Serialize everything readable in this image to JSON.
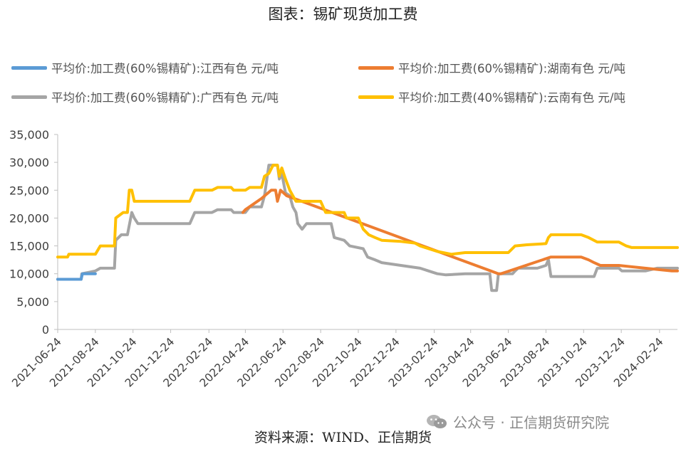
{
  "chart_data": {
    "type": "line",
    "title": "图表：锡矿现货加工费",
    "xlabel": "",
    "ylabel": "",
    "ylim": [
      0,
      35000
    ],
    "yticks": [
      0,
      5000,
      10000,
      15000,
      20000,
      25000,
      30000,
      35000
    ],
    "ytick_labels": [
      "0",
      "5,000",
      "10,000",
      "15,000",
      "20,000",
      "25,000",
      "30,000",
      "35,000"
    ],
    "xlim": [
      "2021-06-24",
      "2024-03-24"
    ],
    "xtick_labels": [
      "2021-06-24",
      "2021-08-24",
      "2021-10-24",
      "2021-12-24",
      "2022-02-24",
      "2022-04-24",
      "2022-06-24",
      "2022-08-24",
      "2022-10-24",
      "2022-12-24",
      "2023-02-24",
      "2023-04-24",
      "2023-06-24",
      "2023-08-24",
      "2023-10-24",
      "2023-12-24",
      "2024-02-24"
    ],
    "grid": false,
    "legend_position": "top",
    "series": [
      {
        "name": "平均价:加工费(60%锡精矿):江西有色 元/吨",
        "color": "#5b9bd5",
        "points": [
          [
            "2021-06-24",
            9000
          ],
          [
            "2021-08-01",
            9000
          ],
          [
            "2021-08-03",
            10000
          ],
          [
            "2021-08-24",
            10000
          ]
        ]
      },
      {
        "name": "平均价:加工费(60%锡精矿):湖南有色 元/吨",
        "color": "#ed7d31",
        "points": [
          [
            "2022-04-20",
            21000
          ],
          [
            "2022-04-24",
            21500
          ],
          [
            "2022-05-20",
            23500
          ],
          [
            "2022-06-05",
            25000
          ],
          [
            "2022-06-12",
            25000
          ],
          [
            "2022-06-15",
            23000
          ],
          [
            "2022-06-20",
            25000
          ],
          [
            "2022-06-30",
            24000
          ],
          [
            "2023-06-08",
            10000
          ],
          [
            "2023-06-12",
            10000
          ],
          [
            "2023-09-01",
            13000
          ],
          [
            "2023-10-20",
            13000
          ],
          [
            "2023-11-01",
            12500
          ],
          [
            "2023-11-10",
            12000
          ],
          [
            "2023-11-20",
            11500
          ],
          [
            "2023-12-20",
            11500
          ],
          [
            "2024-03-15",
            10500
          ],
          [
            "2024-03-24",
            10500
          ]
        ]
      },
      {
        "name": "平均价:加工费(60%锡精矿):广西有色 元/吨",
        "color": "#a5a5a5",
        "points": [
          [
            "2021-06-24",
            9000
          ],
          [
            "2021-08-01",
            9000
          ],
          [
            "2021-08-02",
            10000
          ],
          [
            "2021-08-24",
            10500
          ],
          [
            "2021-09-01",
            11000
          ],
          [
            "2021-09-24",
            11000
          ],
          [
            "2021-09-26",
            16000
          ],
          [
            "2021-10-05",
            17000
          ],
          [
            "2021-10-15",
            17000
          ],
          [
            "2021-10-22",
            21000
          ],
          [
            "2021-10-26",
            20000
          ],
          [
            "2021-11-01",
            19000
          ],
          [
            "2022-01-24",
            19000
          ],
          [
            "2022-02-01",
            21000
          ],
          [
            "2022-03-01",
            21000
          ],
          [
            "2022-03-10",
            21500
          ],
          [
            "2022-04-01",
            21500
          ],
          [
            "2022-04-05",
            21000
          ],
          [
            "2022-04-24",
            21000
          ],
          [
            "2022-05-01",
            22000
          ],
          [
            "2022-05-20",
            22000
          ],
          [
            "2022-05-25",
            24000
          ],
          [
            "2022-06-01",
            29500
          ],
          [
            "2022-06-15",
            29500
          ],
          [
            "2022-06-18",
            27000
          ],
          [
            "2022-06-22",
            28000
          ],
          [
            "2022-06-28",
            24500
          ],
          [
            "2022-07-05",
            24000
          ],
          [
            "2022-07-10",
            22000
          ],
          [
            "2022-07-15",
            21000
          ],
          [
            "2022-07-18",
            19000
          ],
          [
            "2022-07-25",
            18000
          ],
          [
            "2022-08-01",
            19000
          ],
          [
            "2022-09-10",
            19000
          ],
          [
            "2022-09-15",
            16500
          ],
          [
            "2022-10-01",
            16000
          ],
          [
            "2022-10-10",
            15000
          ],
          [
            "2022-11-01",
            14500
          ],
          [
            "2022-11-08",
            13000
          ],
          [
            "2022-11-20",
            12500
          ],
          [
            "2022-12-01",
            12000
          ],
          [
            "2023-01-01",
            11500
          ],
          [
            "2023-02-01",
            11000
          ],
          [
            "2023-02-15",
            10500
          ],
          [
            "2023-03-01",
            10000
          ],
          [
            "2023-03-15",
            9800
          ],
          [
            "2023-04-15",
            10000
          ],
          [
            "2023-05-25",
            10000
          ],
          [
            "2023-05-28",
            7000
          ],
          [
            "2023-06-05",
            7000
          ],
          [
            "2023-06-08",
            10000
          ],
          [
            "2023-07-01",
            10000
          ],
          [
            "2023-07-05",
            10500
          ],
          [
            "2023-07-10",
            11000
          ],
          [
            "2023-08-10",
            11000
          ],
          [
            "2023-08-24",
            11500
          ],
          [
            "2023-08-28",
            12500
          ],
          [
            "2023-09-01",
            9500
          ],
          [
            "2023-11-10",
            9500
          ],
          [
            "2023-11-15",
            11000
          ],
          [
            "2023-12-20",
            11000
          ],
          [
            "2023-12-25",
            10500
          ],
          [
            "2024-02-01",
            10500
          ],
          [
            "2024-02-20",
            11000
          ],
          [
            "2024-03-24",
            11000
          ]
        ]
      },
      {
        "name": "平均价:加工费(40%锡精矿):云南有色 元/吨",
        "color": "#ffc000",
        "points": [
          [
            "2021-06-24",
            13000
          ],
          [
            "2021-07-10",
            13000
          ],
          [
            "2021-07-12",
            13500
          ],
          [
            "2021-08-24",
            13500
          ],
          [
            "2021-09-01",
            15000
          ],
          [
            "2021-09-24",
            15000
          ],
          [
            "2021-09-26",
            20000
          ],
          [
            "2021-10-08",
            21000
          ],
          [
            "2021-10-15",
            21000
          ],
          [
            "2021-10-18",
            25000
          ],
          [
            "2021-10-22",
            25000
          ],
          [
            "2021-10-26",
            23000
          ],
          [
            "2021-11-01",
            23000
          ],
          [
            "2022-01-24",
            23000
          ],
          [
            "2022-02-01",
            25000
          ],
          [
            "2022-03-01",
            25000
          ],
          [
            "2022-03-10",
            25500
          ],
          [
            "2022-04-01",
            25500
          ],
          [
            "2022-04-05",
            25000
          ],
          [
            "2022-04-24",
            25000
          ],
          [
            "2022-05-01",
            25500
          ],
          [
            "2022-05-20",
            25500
          ],
          [
            "2022-05-25",
            27500
          ],
          [
            "2022-06-01",
            28000
          ],
          [
            "2022-06-08",
            29500
          ],
          [
            "2022-06-15",
            29500
          ],
          [
            "2022-06-18",
            27500
          ],
          [
            "2022-06-22",
            29000
          ],
          [
            "2022-06-28",
            27000
          ],
          [
            "2022-07-05",
            25000
          ],
          [
            "2022-07-10",
            24000
          ],
          [
            "2022-07-15",
            23000
          ],
          [
            "2022-08-24",
            23000
          ],
          [
            "2022-09-01",
            21000
          ],
          [
            "2022-10-01",
            21000
          ],
          [
            "2022-10-05",
            20000
          ],
          [
            "2022-10-24",
            20000
          ],
          [
            "2022-11-01",
            18000
          ],
          [
            "2022-11-10",
            17000
          ],
          [
            "2022-11-20",
            16500
          ],
          [
            "2022-12-01",
            16000
          ],
          [
            "2023-01-01",
            15800
          ],
          [
            "2023-01-24",
            15500
          ],
          [
            "2023-02-01",
            15000
          ],
          [
            "2023-02-15",
            14500
          ],
          [
            "2023-03-01",
            14000
          ],
          [
            "2023-03-24",
            13500
          ],
          [
            "2023-04-15",
            13800
          ],
          [
            "2023-06-24",
            13800
          ],
          [
            "2023-07-05",
            15000
          ],
          [
            "2023-07-24",
            15200
          ],
          [
            "2023-08-24",
            15400
          ],
          [
            "2023-08-28",
            16500
          ],
          [
            "2023-09-01",
            17000
          ],
          [
            "2023-10-20",
            17000
          ],
          [
            "2023-11-01",
            16500
          ],
          [
            "2023-11-15",
            15700
          ],
          [
            "2023-12-20",
            15700
          ],
          [
            "2024-01-01",
            15000
          ],
          [
            "2024-01-10",
            14700
          ],
          [
            "2024-03-24",
            14700
          ]
        ]
      }
    ]
  },
  "source": "资料来源：WIND、正信期货",
  "watermark": "公众号 · 正信期货研究院",
  "watermark_icon": "wechat-icon"
}
